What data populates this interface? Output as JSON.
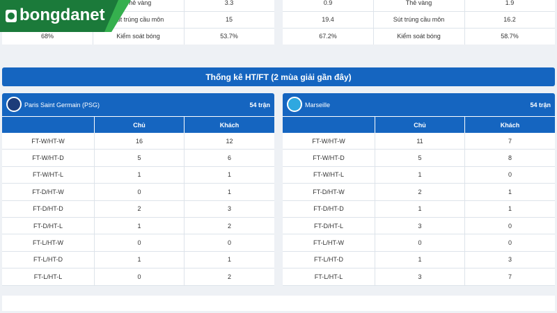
{
  "logo": {
    "text": "bongdanet"
  },
  "top_stats": {
    "left": [
      {
        "label": "Thẻ vàng",
        "away": "3.3"
      },
      {
        "label": "Sút trúng cầu môn",
        "away": "15"
      },
      {
        "home": "68%",
        "label": "Kiểm soát bóng",
        "away": "53.7%"
      }
    ],
    "right": [
      {
        "home": "0.9",
        "label": "Thẻ vàng",
        "away": "1.9"
      },
      {
        "home": "19.4",
        "label": "Sút trúng cầu môn",
        "away": "16.2"
      },
      {
        "home": "67.2%",
        "label": "Kiểm soát bóng",
        "away": "58.7%"
      }
    ]
  },
  "section_title": "Thống kê HT/FT (2 mùa giải gần đây)",
  "teams": [
    {
      "name": "Paris Saint Germain (PSG)",
      "matches": "54 trận",
      "columns": [
        "Chủ",
        "Khách"
      ],
      "rows": [
        [
          "FT-W/HT-W",
          16,
          12
        ],
        [
          "FT-W/HT-D",
          5,
          6
        ],
        [
          "FT-W/HT-L",
          1,
          1
        ],
        [
          "FT-D/HT-W",
          0,
          1
        ],
        [
          "FT-D/HT-D",
          2,
          3
        ],
        [
          "FT-D/HT-L",
          1,
          2
        ],
        [
          "FT-L/HT-W",
          0,
          0
        ],
        [
          "FT-L/HT-D",
          1,
          1
        ],
        [
          "FT-L/HT-L",
          0,
          2
        ]
      ]
    },
    {
      "name": "Marseille",
      "matches": "54 trận",
      "columns": [
        "Chủ",
        "Khách"
      ],
      "rows": [
        [
          "FT-W/HT-W",
          11,
          7
        ],
        [
          "FT-W/HT-D",
          5,
          8
        ],
        [
          "FT-W/HT-L",
          1,
          0
        ],
        [
          "FT-D/HT-W",
          2,
          1
        ],
        [
          "FT-D/HT-D",
          1,
          1
        ],
        [
          "FT-D/HT-L",
          3,
          0
        ],
        [
          "FT-L/HT-W",
          0,
          0
        ],
        [
          "FT-L/HT-D",
          1,
          3
        ],
        [
          "FT-L/HT-L",
          3,
          7
        ]
      ]
    }
  ]
}
